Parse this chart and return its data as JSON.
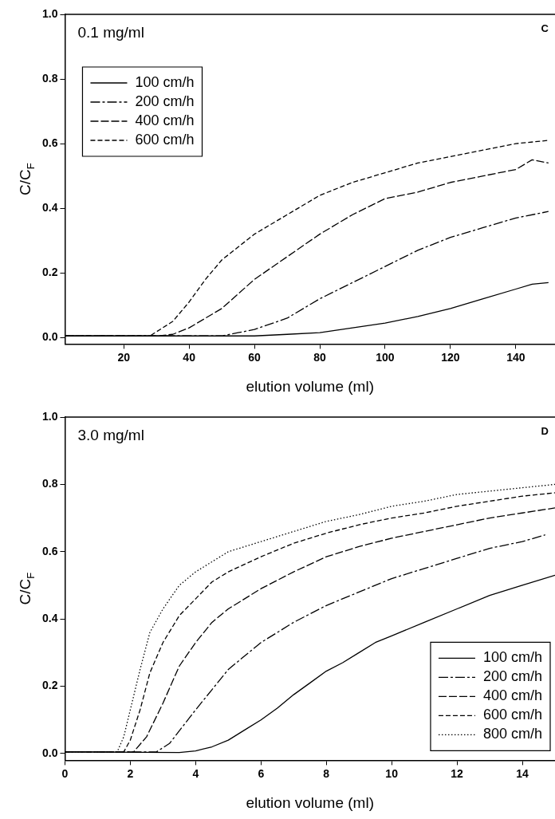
{
  "chart_data": [
    {
      "type": "line",
      "xlabel": "elution volume (ml)",
      "ylabel": "C/C$_{F}$",
      "annotations": [
        "0.1 mg/ml",
        "C"
      ],
      "legend": "top left",
      "xlim": [
        2,
        152
      ],
      "ylim": [
        -0.02,
        1
      ],
      "xticks": [
        20,
        40,
        60,
        80,
        100,
        120,
        140
      ],
      "yticks": [
        {
          "value": 0,
          "label": "0.0"
        },
        {
          "value": 0.2,
          "label": "0.2"
        },
        {
          "value": 0.4,
          "label": "0.4"
        },
        {
          "value": 0.6,
          "label": "0.6"
        },
        {
          "value": 0.8,
          "label": "0.8"
        },
        {
          "value": 1,
          "label": "1.0"
        }
      ],
      "marker": "none",
      "series": [
        {
          "name": "100 cm/h",
          "color": "#000000",
          "line_style": "solid",
          "x": [
            2,
            60,
            70,
            80,
            90,
            100,
            110,
            120,
            130,
            140,
            145,
            150
          ],
          "values": [
            0.005,
            0.005,
            0.01,
            0.015,
            0.03,
            0.045,
            0.065,
            0.09,
            0.12,
            0.15,
            0.165,
            0.17
          ]
        },
        {
          "name": "200 cm/h",
          "color": "#000000",
          "line_style": "dashed",
          "x": [
            2,
            50,
            55,
            60,
            70,
            80,
            90,
            100,
            110,
            120,
            130,
            140,
            150
          ],
          "values": [
            0.005,
            0.005,
            0.015,
            0.025,
            0.06,
            0.12,
            0.17,
            0.22,
            0.27,
            0.31,
            0.34,
            0.37,
            0.39
          ]
        },
        {
          "name": "400 cm/h",
          "color": "#000000",
          "line_style": "dashed",
          "x": [
            2,
            30,
            35,
            40,
            50,
            60,
            70,
            80,
            90,
            100,
            110,
            120,
            130,
            140,
            145,
            150
          ],
          "values": [
            0.005,
            0.005,
            0.01,
            0.03,
            0.09,
            0.18,
            0.25,
            0.32,
            0.38,
            0.43,
            0.45,
            0.48,
            0.5,
            0.52,
            0.55,
            0.54
          ]
        },
        {
          "name": "600 cm/h",
          "color": "#000000",
          "line_style": "dashed",
          "x": [
            2,
            28,
            35,
            40,
            45,
            50,
            55,
            60,
            70,
            80,
            90,
            100,
            110,
            120,
            130,
            140,
            150
          ],
          "values": [
            0.005,
            0.005,
            0.05,
            0.11,
            0.18,
            0.24,
            0.28,
            0.32,
            0.38,
            0.44,
            0.48,
            0.51,
            0.54,
            0.56,
            0.58,
            0.6,
            0.61
          ]
        }
      ]
    },
    {
      "type": "line",
      "xlabel": "elution volume (ml)",
      "ylabel": "C/C$_{F}$",
      "annotations": [
        "3.0 mg/ml",
        "D"
      ],
      "legend": "bottom right",
      "xlim": [
        0,
        15
      ],
      "ylim": [
        -0.02,
        1
      ],
      "xticks": [
        0,
        2,
        4,
        6,
        8,
        10,
        12,
        14
      ],
      "yticks": [
        {
          "value": 0,
          "label": "0.0"
        },
        {
          "value": 0.2,
          "label": "0.2"
        },
        {
          "value": 0.4,
          "label": "0.4"
        },
        {
          "value": 0.6,
          "label": "0.6"
        },
        {
          "value": 0.8,
          "label": "0.8"
        },
        {
          "value": 1,
          "label": "1.0"
        }
      ],
      "marker": "none",
      "series": [
        {
          "name": "100 cm/h",
          "color": "#000000",
          "line_style": "solid",
          "x": [
            0,
            3.5,
            4,
            4.5,
            5,
            5.5,
            6,
            6.5,
            7,
            7.5,
            8,
            8.5,
            9,
            9.5,
            10,
            11,
            12,
            13,
            14,
            15
          ],
          "values": [
            0.005,
            0.003,
            0.008,
            0.02,
            0.04,
            0.07,
            0.1,
            0.135,
            0.175,
            0.21,
            0.245,
            0.27,
            0.3,
            0.33,
            0.35,
            0.39,
            0.43,
            0.47,
            0.5,
            0.53
          ]
        },
        {
          "name": "200 cm/h",
          "color": "#000000",
          "line_style": "dashed",
          "x": [
            0,
            2.8,
            3.2,
            3.6,
            4,
            4.5,
            5,
            5.5,
            6,
            6.5,
            7,
            8,
            9,
            10,
            11,
            12,
            13,
            14,
            14.7
          ],
          "values": [
            0.005,
            0.005,
            0.03,
            0.08,
            0.13,
            0.19,
            0.25,
            0.29,
            0.33,
            0.36,
            0.39,
            0.44,
            0.48,
            0.52,
            0.55,
            0.58,
            0.61,
            0.63,
            0.65
          ]
        },
        {
          "name": "400 cm/h",
          "color": "#000000",
          "line_style": "dashed",
          "x": [
            0,
            2.1,
            2.5,
            3,
            3.5,
            4,
            4.5,
            5,
            5.5,
            6,
            7,
            8,
            9,
            10,
            11,
            12,
            13,
            14,
            15
          ],
          "values": [
            0.005,
            0.005,
            0.05,
            0.15,
            0.26,
            0.33,
            0.39,
            0.43,
            0.46,
            0.49,
            0.54,
            0.585,
            0.615,
            0.64,
            0.66,
            0.68,
            0.7,
            0.715,
            0.73
          ]
        },
        {
          "name": "600 cm/h",
          "color": "#000000",
          "line_style": "dashed",
          "x": [
            0,
            1.8,
            2,
            2.3,
            2.6,
            3,
            3.5,
            4,
            4.5,
            5,
            6,
            7,
            8,
            9,
            10,
            11,
            12,
            13,
            14,
            15
          ],
          "values": [
            0.005,
            0.005,
            0.04,
            0.13,
            0.24,
            0.33,
            0.41,
            0.46,
            0.51,
            0.54,
            0.585,
            0.625,
            0.655,
            0.68,
            0.7,
            0.715,
            0.735,
            0.75,
            0.765,
            0.775
          ]
        },
        {
          "name": "800 cm/h",
          "color": "#000000",
          "line_style": "dotted",
          "x": [
            0,
            1.6,
            1.8,
            2,
            2.3,
            2.6,
            3,
            3.5,
            4,
            4.5,
            5,
            6,
            7,
            8,
            9,
            10,
            11,
            12,
            13,
            14,
            15
          ],
          "values": [
            0.005,
            0.005,
            0.05,
            0.13,
            0.25,
            0.36,
            0.43,
            0.5,
            0.54,
            0.57,
            0.6,
            0.63,
            0.66,
            0.69,
            0.71,
            0.735,
            0.75,
            0.77,
            0.78,
            0.79,
            0.8
          ]
        }
      ]
    }
  ]
}
